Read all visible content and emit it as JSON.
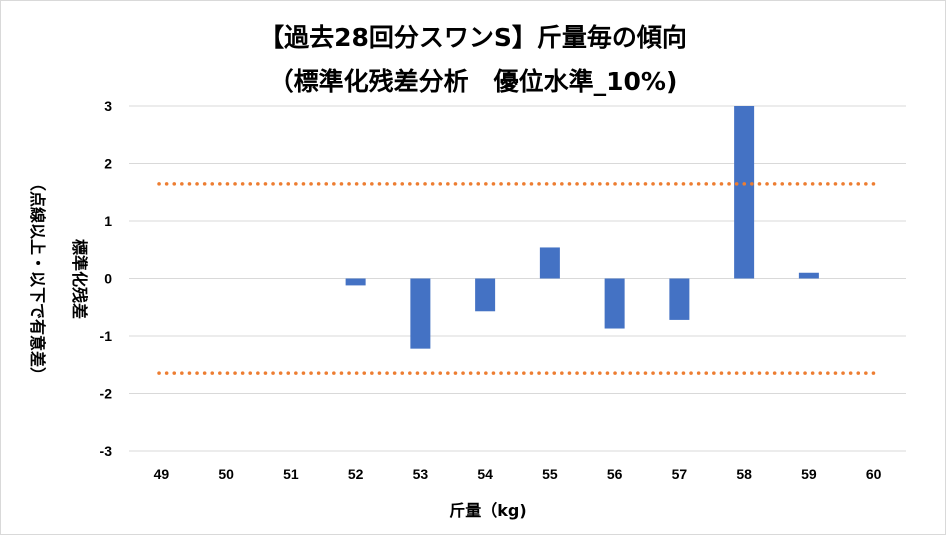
{
  "chart_data": {
    "type": "bar",
    "title": "【過去28回分スワンS】斤量毎の傾向",
    "subtitle": "（標準化残差分析　優位水準_10%)",
    "xlabel": "斤量（kg)",
    "ylabel_line1": "標準化残差",
    "ylabel_line2": "（点線以上・以下で有意差）",
    "categories": [
      "49",
      "50",
      "51",
      "52",
      "53",
      "54",
      "55",
      "56",
      "57",
      "58",
      "59",
      "60"
    ],
    "values": [
      0,
      0,
      0,
      -0.12,
      -1.22,
      -0.57,
      0.54,
      -0.87,
      -0.72,
      3.0,
      0.1,
      0
    ],
    "ylim": [
      -3,
      3
    ],
    "yticks": [
      "3",
      "2",
      "1",
      "0",
      "-1",
      "-2",
      "-3"
    ],
    "significance_threshold": 1.645,
    "grid": true,
    "colors": {
      "bar": "#4472c4",
      "threshold": "#ed7d31",
      "grid": "#d9d9d9"
    }
  }
}
